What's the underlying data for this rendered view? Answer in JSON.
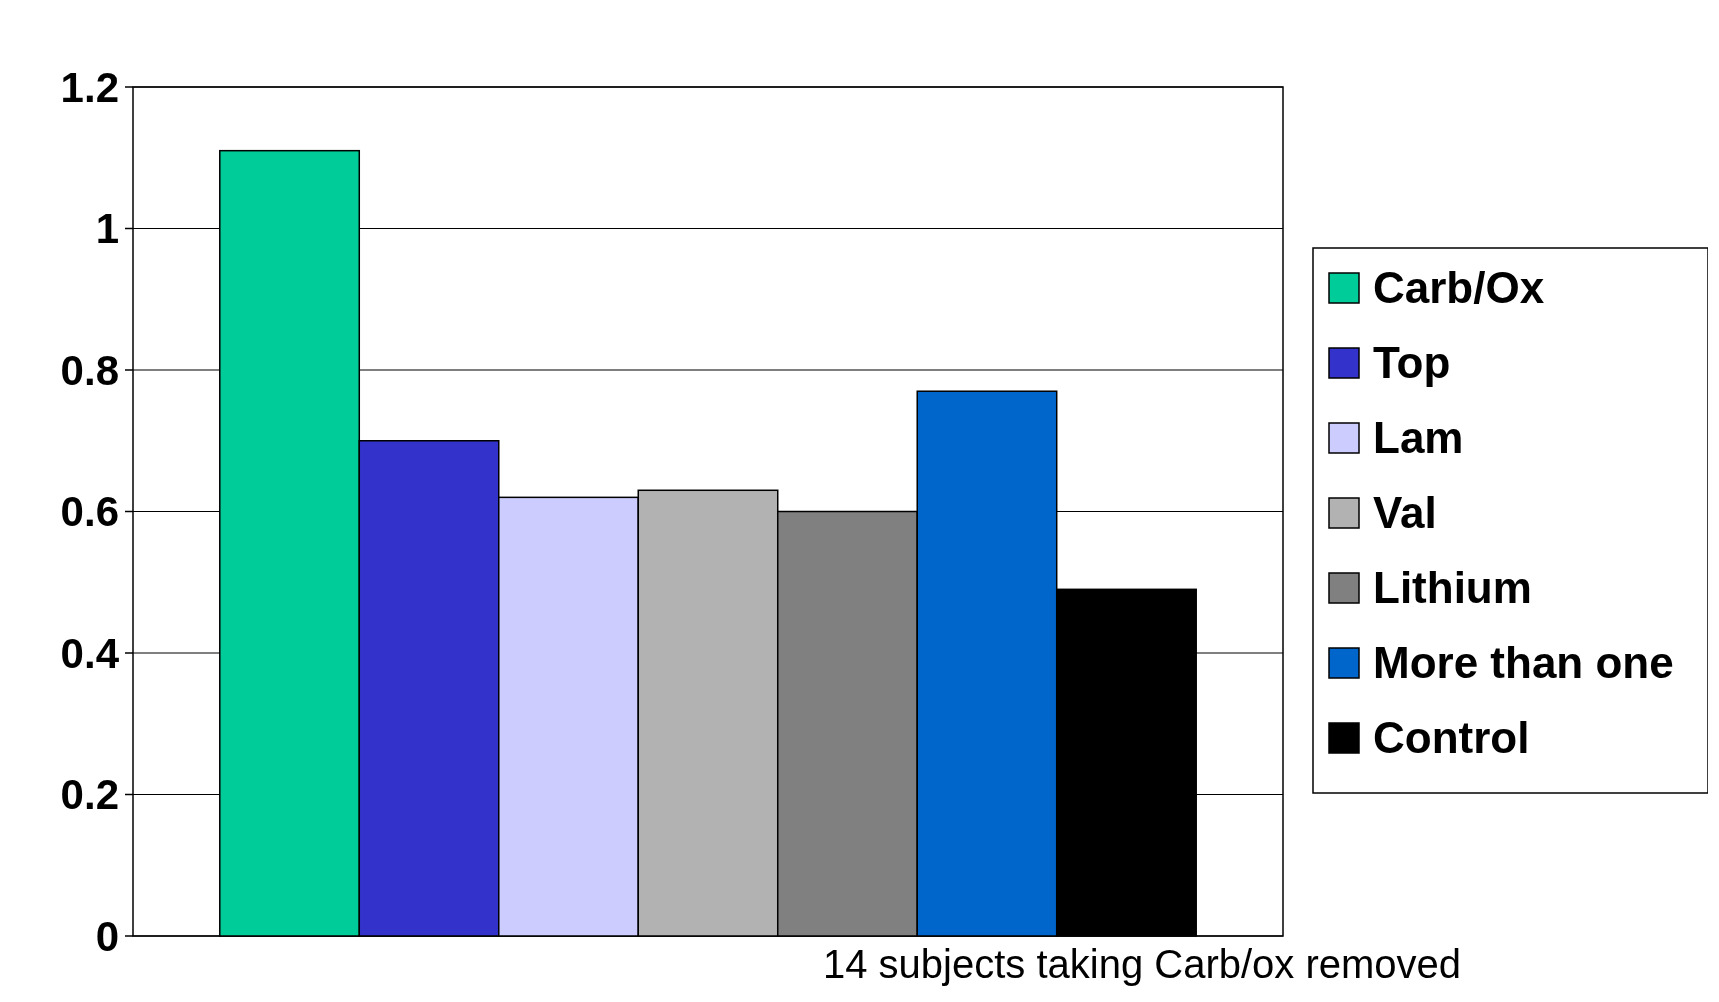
{
  "chart_data": {
    "type": "bar",
    "categories": [
      null
    ],
    "series": [
      {
        "name": "Carb/Ox",
        "color": "#00cc99",
        "values": [
          1.11
        ]
      },
      {
        "name": "Top",
        "color": "#3333cc",
        "values": [
          0.7
        ]
      },
      {
        "name": "Lam",
        "color": "#ccccff",
        "values": [
          0.62
        ]
      },
      {
        "name": "Val",
        "color": "#b2b2b2",
        "values": [
          0.63
        ]
      },
      {
        "name": "Lithium",
        "color": "#808080",
        "values": [
          0.6
        ]
      },
      {
        "name": "More than one",
        "color": "#0066cc",
        "values": [
          0.77
        ]
      },
      {
        "name": "Control",
        "color": "#000000",
        "values": [
          0.49
        ]
      }
    ],
    "ylim": [
      0,
      1.2
    ],
    "yticks": [
      0,
      0.2,
      0.4,
      0.6,
      0.8,
      1,
      1.2
    ],
    "grid": "y",
    "legend": "right",
    "annotations": [
      "14 subjects taking Carb/ox removed"
    ]
  }
}
